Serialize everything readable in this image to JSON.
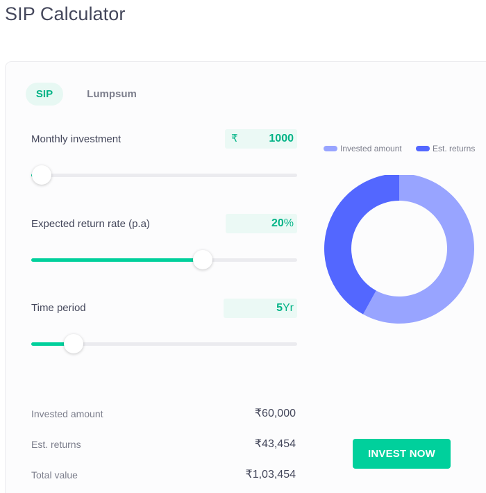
{
  "page": {
    "title": "SIP Calculator"
  },
  "tabs": [
    {
      "label": "SIP",
      "active": true
    },
    {
      "label": "Lumpsum",
      "active": false
    }
  ],
  "inputs": {
    "monthly_investment": {
      "label": "Monthly investment",
      "currency": "₹",
      "value": "1000",
      "slider_fraction": 0.04
    },
    "return_rate": {
      "label": "Expected return rate (p.a)",
      "value": "20",
      "unit": "%",
      "slider_fraction": 0.645
    },
    "time_period": {
      "label": "Time period",
      "value": "5",
      "unit": "Yr",
      "slider_fraction": 0.16
    }
  },
  "legend": [
    {
      "label": "Invested amount",
      "color": "#98a4ff"
    },
    {
      "label": "Est. returns",
      "color": "#5367ff"
    }
  ],
  "chart_data": {
    "type": "pie",
    "style": "donut",
    "slices": [
      {
        "label": "Invested amount",
        "value": 60000,
        "color": "#98a4ff"
      },
      {
        "label": "Est. returns",
        "value": 43454,
        "color": "#5367ff"
      }
    ],
    "legend_position": "top"
  },
  "summary": [
    {
      "label": "Invested amount",
      "value": "₹60,000"
    },
    {
      "label": "Est. returns",
      "value": "₹43,454"
    },
    {
      "label": "Total value",
      "value": "₹1,03,454"
    }
  ],
  "cta": {
    "label": "INVEST NOW"
  },
  "colors": {
    "accent": "#00d09c",
    "accent_text": "#00b386",
    "invested": "#98a4ff",
    "returns": "#5367ff"
  }
}
